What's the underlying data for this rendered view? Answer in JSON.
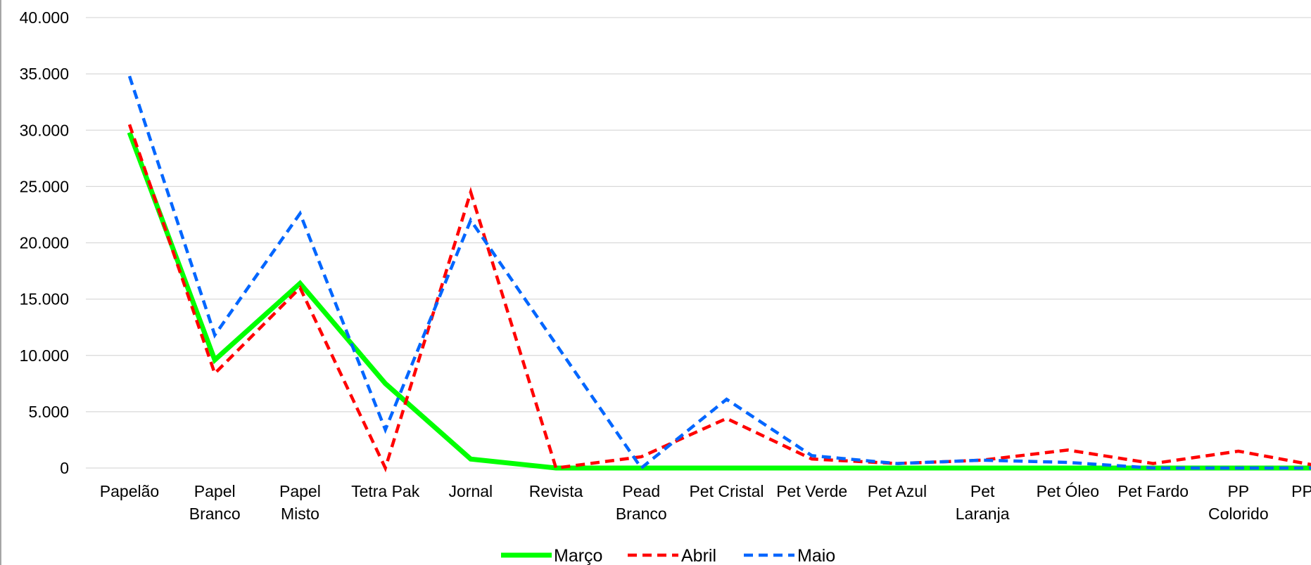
{
  "chart_data": {
    "type": "line",
    "title": "",
    "xlabel": "",
    "ylabel": "",
    "ylim": [
      0,
      40000
    ],
    "y_ticks": [
      0,
      5000,
      10000,
      15000,
      20000,
      25000,
      30000,
      35000,
      40000
    ],
    "y_tick_labels": [
      "0",
      "5.000",
      "10.000",
      "15.000",
      "20.000",
      "25.000",
      "30.000",
      "35.000",
      "40.000"
    ],
    "grid": "horizontal",
    "legend_position": "bottom",
    "categories": [
      "Papelão",
      "Papel Branco",
      "Papel Misto",
      "Tetra Pak",
      "Jornal",
      "Revista",
      "Pead Branco",
      "Pet Cristal",
      "Pet Verde",
      "Pet Azul",
      "Pet Laranja",
      "Pet Óleo",
      "Pet Fardo",
      "PP Colorido",
      "PP Preto"
    ],
    "series": [
      {
        "name": "Março",
        "color": "#00ff00",
        "style": "solid",
        "values": [
          29800,
          9600,
          16400,
          7500,
          800,
          0,
          0,
          0,
          0,
          0,
          0,
          0,
          0,
          0,
          0
        ]
      },
      {
        "name": "Abril",
        "color": "#ff0000",
        "style": "dashed",
        "values": [
          30500,
          8400,
          16000,
          0,
          24500,
          0,
          1000,
          4400,
          800,
          400,
          700,
          1600,
          400,
          1500,
          100
        ]
      },
      {
        "name": "Maio",
        "color": "#0066ff",
        "style": "dashed",
        "values": [
          34800,
          11800,
          22600,
          3400,
          22000,
          11000,
          0,
          6100,
          1100,
          400,
          700,
          500,
          0,
          0,
          0
        ]
      }
    ]
  }
}
